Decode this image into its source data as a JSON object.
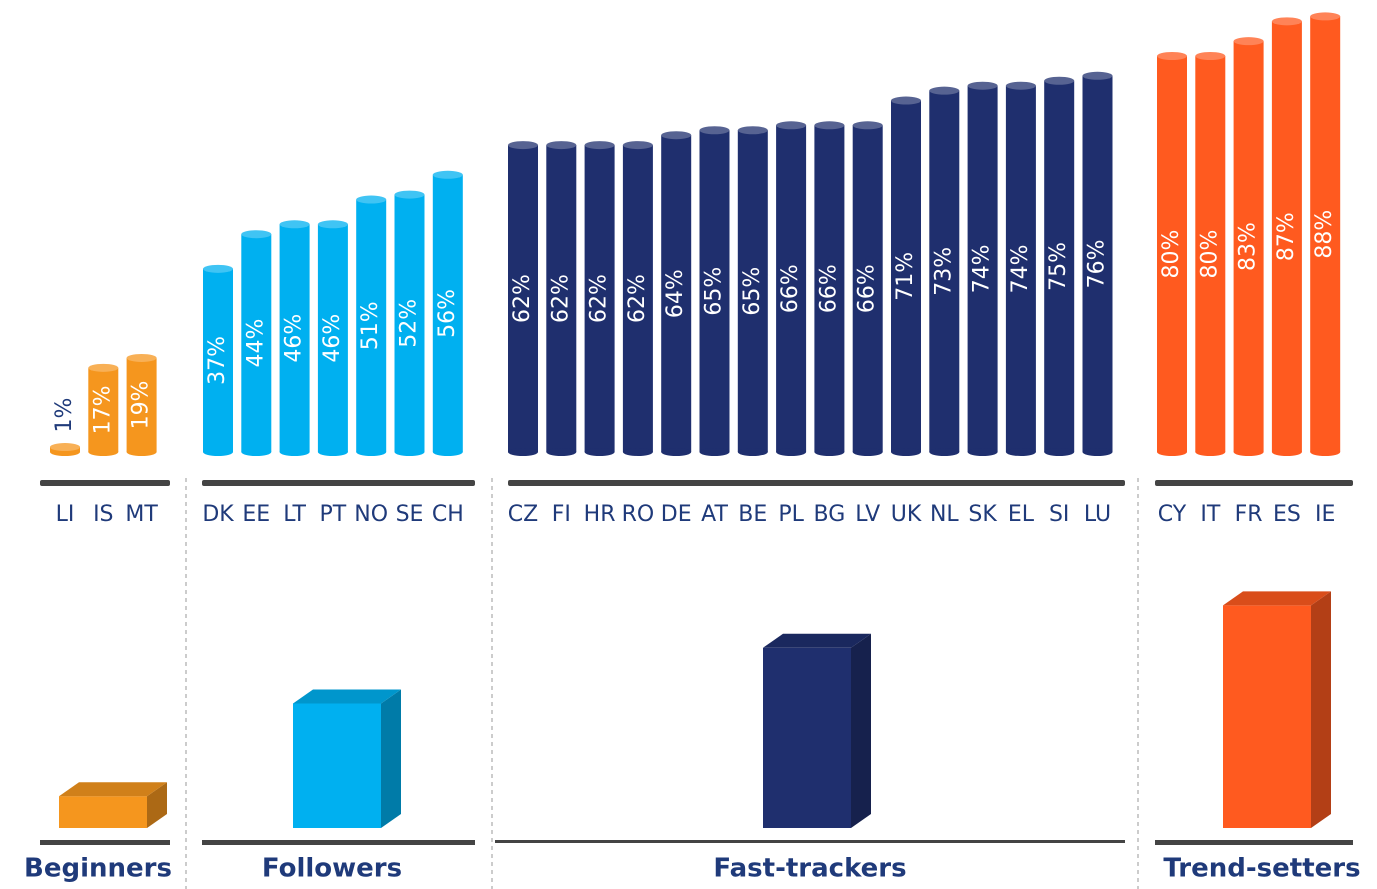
{
  "chart_data": {
    "type": "bar",
    "groups": [
      {
        "name": "Beginners",
        "color": "#f5961e",
        "categories": [
          "LI",
          "IS",
          "MT"
        ],
        "values": [
          1,
          17,
          19
        ],
        "value_labels": [
          "1%",
          "17%",
          "19%"
        ],
        "summary": 12
      },
      {
        "name": "Followers",
        "color": "#00b0f0",
        "categories": [
          "DK",
          "EE",
          "LT",
          "PT",
          "NO",
          "SE",
          "CH"
        ],
        "values": [
          37,
          44,
          46,
          46,
          51,
          52,
          56
        ],
        "value_labels": [
          "37%",
          "44%",
          "46%",
          "46%",
          "51%",
          "52%",
          "56%"
        ],
        "summary": 47
      },
      {
        "name": "Fast-trackers",
        "color": "#1f2f6e",
        "categories": [
          "CZ",
          "FI",
          "HR",
          "RO",
          "DE",
          "AT",
          "BE",
          "PL",
          "BG",
          "LV",
          "UK",
          "NL",
          "SK",
          "EL",
          "SI",
          "LU"
        ],
        "values": [
          62,
          62,
          62,
          62,
          64,
          65,
          65,
          66,
          66,
          66,
          71,
          73,
          74,
          74,
          75,
          76
        ],
        "value_labels": [
          "62%",
          "62%",
          "62%",
          "62%",
          "64%",
          "65%",
          "65%",
          "66%",
          "66%",
          "66%",
          "71%",
          "73%",
          "74%",
          "74%",
          "75%",
          "76%"
        ],
        "summary": 68
      },
      {
        "name": "Trend-setters",
        "color": "#ff5a1f",
        "categories": [
          "CY",
          "IT",
          "FR",
          "ES",
          "IE"
        ],
        "values": [
          80,
          80,
          83,
          87,
          88
        ],
        "value_labels": [
          "80%",
          "80%",
          "83%",
          "87%",
          "88%"
        ],
        "summary": 84
      }
    ]
  }
}
